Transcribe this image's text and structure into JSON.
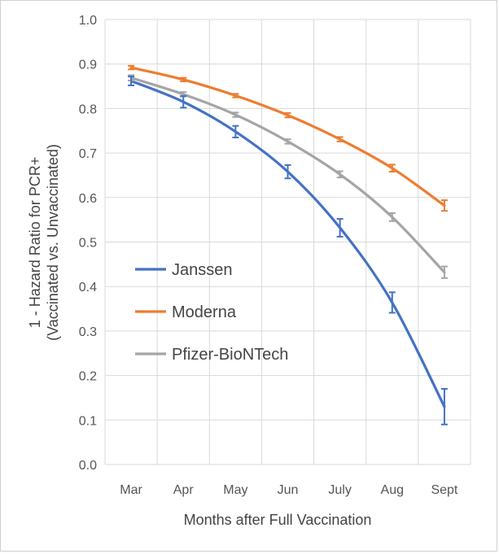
{
  "chart_data": {
    "type": "line",
    "title": "",
    "xlabel": "Months after Full Vaccination",
    "ylabel_line1": "1 - Hazard Ratio for PCR+",
    "ylabel_line2": "(Vaccinated vs. Unvaccinated)",
    "categories": [
      "Mar",
      "Apr",
      "May",
      "Jun",
      "July",
      "Aug",
      "Sept"
    ],
    "ylim": [
      0.0,
      1.0
    ],
    "yticks": [
      "0.0",
      "0.1",
      "0.2",
      "0.3",
      "0.4",
      "0.5",
      "0.6",
      "0.7",
      "0.8",
      "0.9",
      "1.0"
    ],
    "grid": true,
    "legend_position": "left-middle",
    "series": [
      {
        "name": "Janssen",
        "color": "#4472c4",
        "values": [
          0.862,
          0.815,
          0.748,
          0.658,
          0.532,
          0.364,
          0.13
        ],
        "err": [
          0.01,
          0.013,
          0.013,
          0.015,
          0.02,
          0.023,
          0.04
        ]
      },
      {
        "name": "Moderna",
        "color": "#ed7d31",
        "values": [
          0.892,
          0.865,
          0.829,
          0.785,
          0.731,
          0.666,
          0.582
        ],
        "err": [
          0.004,
          0.004,
          0.004,
          0.005,
          0.005,
          0.008,
          0.012
        ]
      },
      {
        "name": "Pfizer-BioNTech",
        "color": "#a5a5a5",
        "values": [
          0.869,
          0.832,
          0.786,
          0.726,
          0.652,
          0.556,
          0.432
        ],
        "err": [
          0.006,
          0.005,
          0.005,
          0.005,
          0.007,
          0.009,
          0.013
        ]
      }
    ]
  }
}
